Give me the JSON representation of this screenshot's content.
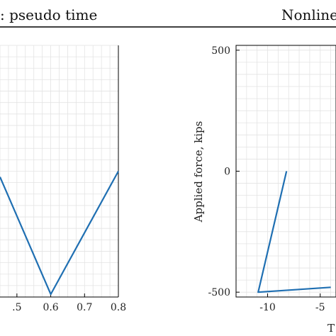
{
  "header": {
    "left_title": ": pseudo time",
    "right_title": "Nonline"
  },
  "chart_data": [
    {
      "type": "line",
      "title": ": pseudo time",
      "xlabel": "",
      "ylabel": "",
      "xlim": [
        0.45,
        0.8
      ],
      "ylim": [
        -550,
        550
      ],
      "x_ticks": [
        0.5,
        0.6,
        0.7,
        0.8
      ],
      "x_tick_labels": [
        ".5",
        "0.6",
        "0.7",
        "0.8"
      ],
      "grid": true,
      "series": [
        {
          "color": "#1f6fb2",
          "x": [
            0.45,
            0.6,
            0.8
          ],
          "y": [
            -25,
            -538,
            0
          ]
        }
      ]
    },
    {
      "type": "line",
      "title": "Nonline",
      "xlabel": "T",
      "ylabel": "Applied force, kips",
      "xlim": [
        -13,
        -3.5
      ],
      "ylim": [
        -520,
        520
      ],
      "x_ticks": [
        -10,
        -5
      ],
      "x_tick_labels": [
        "-10",
        "-5"
      ],
      "y_ticks": [
        500,
        0,
        -500
      ],
      "y_tick_labels": [
        "500",
        "0",
        "-500"
      ],
      "grid": true,
      "series": [
        {
          "color": "#1f6fb2",
          "x": [
            -8.2,
            -10.9,
            -4.0
          ],
          "y": [
            0,
            -500,
            -480
          ]
        }
      ]
    }
  ]
}
